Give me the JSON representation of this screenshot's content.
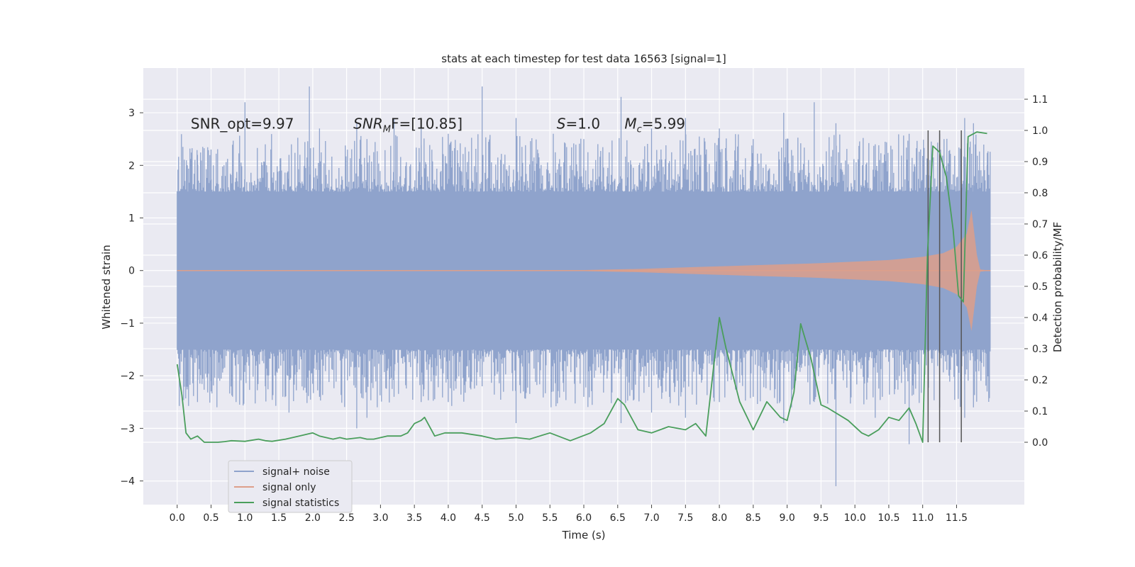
{
  "chart_data": {
    "type": "line",
    "title": "stats at each timestep for test data 16563 [signal=1]",
    "xlabel": "Time (s)",
    "ylabel": "Whitened strain",
    "y2label": "Detection probability/MF",
    "xlim": [
      -0.5,
      12.5
    ],
    "ylim": [
      -4.45,
      3.85
    ],
    "y2lim": [
      -0.2,
      1.2
    ],
    "x_ticks": [
      0.0,
      0.5,
      1.0,
      1.5,
      2.0,
      2.5,
      3.0,
      3.5,
      4.0,
      4.5,
      5.0,
      5.5,
      6.0,
      6.5,
      7.0,
      7.5,
      8.0,
      8.5,
      9.0,
      9.5,
      10.0,
      10.5,
      11.0,
      11.5
    ],
    "x_tick_labels": [
      "0.0",
      "0.5",
      "1.0",
      "1.5",
      "2.0",
      "2.5",
      "3.0",
      "3.5",
      "4.0",
      "4.5",
      "5.0",
      "5.5",
      "6.0",
      "6.5",
      "7.0",
      "7.5",
      "8.0",
      "8.5",
      "9.0",
      "9.5",
      "10.0",
      "10.5",
      "11.0",
      "11.5"
    ],
    "y_ticks": [
      -4,
      -3,
      -2,
      -1,
      0,
      1,
      2,
      3
    ],
    "y_tick_labels": [
      "−4",
      "−3",
      "−2",
      "−1",
      "0",
      "1",
      "2",
      "3"
    ],
    "y2_ticks": [
      0.0,
      0.1,
      0.2,
      0.3,
      0.4,
      0.5,
      0.6,
      0.7,
      0.8,
      0.9,
      1.0,
      1.1
    ],
    "y2_tick_labels": [
      "0.0",
      "0.1",
      "0.2",
      "0.3",
      "0.4",
      "0.5",
      "0.6",
      "0.7",
      "0.8",
      "0.9",
      "1.0",
      "1.1"
    ],
    "grid": true,
    "legend_position": "lower-left",
    "annotations": [
      {
        "text": "SNR_opt=9.97",
        "x": 0.2
      },
      {
        "text": "SNR",
        "sub": "M",
        "tail": "F=[10.85]",
        "italic_head": true,
        "x": 2.6
      },
      {
        "text": "S",
        "tail": "=1.0",
        "italic_head": true,
        "x": 5.6
      },
      {
        "text": "M",
        "sub": "c",
        "tail": "=5.99",
        "italic_head": true,
        "x": 6.6
      }
    ],
    "annotation_y": 2.7,
    "vlines": {
      "x": [
        11.08,
        11.25,
        11.57
      ],
      "y2_range": [
        0.0,
        1.0
      ],
      "color": "#555555"
    },
    "series": [
      {
        "name": "signal+ noise",
        "color": "#8fa3cc",
        "t_range": [
          0.0,
          12.0
        ],
        "core_amplitude": 1.5,
        "peaks": [
          [
            0.05,
            1.3,
            -1.0
          ],
          [
            0.15,
            2.0,
            -1.5
          ],
          [
            0.3,
            2.2,
            -2.5
          ],
          [
            0.5,
            2.3,
            -2.1
          ],
          [
            1.0,
            3.2,
            -1.8
          ],
          [
            1.3,
            2.4,
            -2.2
          ],
          [
            1.65,
            2.2,
            -2.7
          ],
          [
            1.95,
            3.5,
            -1.9
          ],
          [
            2.1,
            2.7,
            -2.4
          ],
          [
            2.65,
            2.8,
            -3.0
          ],
          [
            2.8,
            2.5,
            -2.8
          ],
          [
            3.2,
            2.9,
            -2.4
          ],
          [
            3.6,
            2.7,
            -2.5
          ],
          [
            4.0,
            2.6,
            -2.5
          ],
          [
            4.5,
            3.5,
            -2.2
          ],
          [
            5.0,
            2.9,
            -2.9
          ],
          [
            5.55,
            2.6,
            -2.3
          ],
          [
            6.0,
            2.5,
            -2.4
          ],
          [
            6.55,
            3.3,
            -2.9
          ],
          [
            7.0,
            2.7,
            -2.7
          ],
          [
            7.5,
            2.9,
            -2.8
          ],
          [
            8.0,
            2.7,
            -2.5
          ],
          [
            8.5,
            2.5,
            -2.4
          ],
          [
            8.95,
            3.0,
            -2.9
          ],
          [
            9.4,
            3.2,
            -2.5
          ],
          [
            9.72,
            2.8,
            -4.1
          ],
          [
            10.3,
            2.4,
            -2.8
          ],
          [
            10.8,
            2.6,
            -3.3
          ],
          [
            11.25,
            2.6,
            -2.6
          ],
          [
            11.62,
            2.9,
            -2.8
          ],
          [
            11.75,
            2.8,
            -2.6
          ],
          [
            11.95,
            2.0,
            -2.3
          ]
        ]
      },
      {
        "name": "signal only",
        "color": "#dd9f8a",
        "envelope": {
          "t": [
            0.0,
            6.0,
            6.8,
            7.5,
            8.0,
            8.5,
            9.0,
            9.5,
            10.0,
            10.5,
            11.0,
            11.3,
            11.5,
            11.65,
            11.72,
            11.8,
            11.85,
            12.0
          ],
          "a": [
            0.005,
            0.01,
            0.03,
            0.06,
            0.08,
            0.1,
            0.12,
            0.14,
            0.17,
            0.2,
            0.26,
            0.33,
            0.45,
            0.7,
            1.15,
            0.3,
            0.02,
            0.0
          ]
        }
      },
      {
        "name": "signal statistics",
        "color": "#4a9e5c",
        "x": [
          0.0,
          0.07,
          0.13,
          0.2,
          0.3,
          0.4,
          0.5,
          0.6,
          0.7,
          0.8,
          1.0,
          1.2,
          1.3,
          1.4,
          1.6,
          1.8,
          2.0,
          2.1,
          2.3,
          2.4,
          2.5,
          2.7,
          2.8,
          2.9,
          3.1,
          3.3,
          3.4,
          3.5,
          3.6,
          3.65,
          3.8,
          3.95,
          4.2,
          4.5,
          4.7,
          5.0,
          5.2,
          5.35,
          5.5,
          5.8,
          6.1,
          6.3,
          6.5,
          6.6,
          6.8,
          7.0,
          7.25,
          7.5,
          7.65,
          7.8,
          7.92,
          8.0,
          8.1,
          8.3,
          8.5,
          8.7,
          8.9,
          9.0,
          9.1,
          9.2,
          9.35,
          9.5,
          9.6,
          9.9,
          10.1,
          10.2,
          10.35,
          10.5,
          10.65,
          10.8,
          10.9,
          11.0,
          11.07,
          11.15,
          11.25,
          11.35,
          11.45,
          11.53,
          11.6,
          11.67,
          11.8,
          11.95
        ],
        "y": [
          0.25,
          0.15,
          0.03,
          0.01,
          0.02,
          0.0,
          0.0,
          0.0,
          0.002,
          0.005,
          0.003,
          0.01,
          0.005,
          0.003,
          0.01,
          0.02,
          0.03,
          0.02,
          0.01,
          0.015,
          0.01,
          0.015,
          0.01,
          0.01,
          0.02,
          0.02,
          0.03,
          0.06,
          0.07,
          0.08,
          0.02,
          0.03,
          0.03,
          0.02,
          0.01,
          0.015,
          0.01,
          0.02,
          0.03,
          0.005,
          0.03,
          0.06,
          0.14,
          0.12,
          0.04,
          0.03,
          0.05,
          0.04,
          0.06,
          0.02,
          0.25,
          0.4,
          0.3,
          0.13,
          0.04,
          0.13,
          0.08,
          0.07,
          0.16,
          0.38,
          0.27,
          0.12,
          0.11,
          0.07,
          0.03,
          0.02,
          0.04,
          0.08,
          0.07,
          0.11,
          0.06,
          0.0,
          0.6,
          0.95,
          0.93,
          0.85,
          0.68,
          0.47,
          0.45,
          0.98,
          0.995,
          0.99
        ]
      }
    ]
  }
}
